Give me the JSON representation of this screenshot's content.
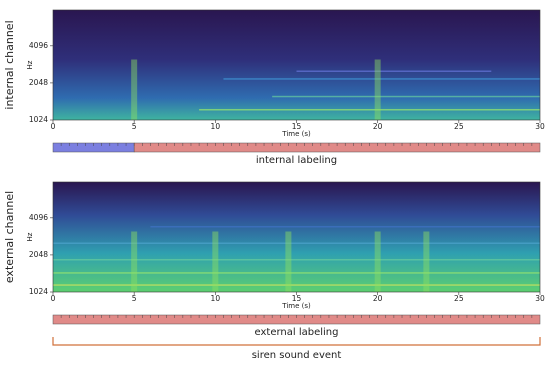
{
  "chart_data": [
    {
      "type": "spectrogram",
      "ylabel_left": "internal channel",
      "ylabel": "Hz",
      "xlabel": "Time (s)",
      "xlim": [
        0,
        30
      ],
      "xticks": [
        0,
        5,
        10,
        15,
        20,
        25,
        30
      ],
      "ylim": [
        1024,
        8000
      ],
      "yticks": [
        1024,
        2048,
        4096
      ],
      "log_scale": true,
      "labeling": {
        "title": "internal labeling",
        "segments": [
          {
            "start": 0,
            "end": 5,
            "color": "#7b7fe0"
          },
          {
            "start": 5,
            "end": 30,
            "color": "#e08a88"
          }
        ]
      }
    },
    {
      "type": "spectrogram",
      "ylabel_left": "external channel",
      "ylabel": "Hz",
      "xlabel": "Time (s)",
      "xlim": [
        0,
        30
      ],
      "xticks": [
        0,
        5,
        10,
        15,
        20,
        25,
        30
      ],
      "ylim": [
        1024,
        8000
      ],
      "yticks": [
        1024,
        2048,
        4096
      ],
      "log_scale": true,
      "labeling": {
        "title": "external labeling",
        "segments": [
          {
            "start": 0,
            "end": 30,
            "color": "#e08a88"
          }
        ]
      },
      "event": {
        "label": "siren sound event",
        "start": 0,
        "end": 30,
        "color": "#d0703a"
      }
    }
  ]
}
